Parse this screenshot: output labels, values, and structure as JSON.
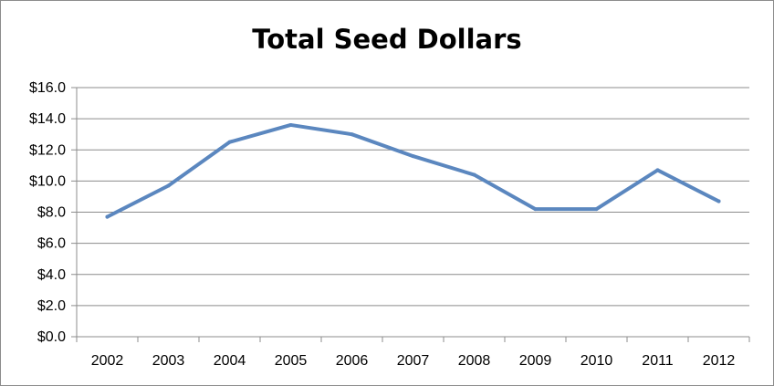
{
  "chart_data": {
    "type": "line",
    "title": "Total Seed Dollars",
    "xlabel": "",
    "ylabel": "",
    "categories": [
      "2002",
      "2003",
      "2004",
      "2005",
      "2006",
      "2007",
      "2008",
      "2009",
      "2010",
      "2011",
      "2012"
    ],
    "series": [
      {
        "values": [
          7.7,
          9.7,
          12.5,
          13.6,
          13.0,
          11.6,
          10.4,
          8.2,
          8.2,
          10.7,
          8.7
        ],
        "color": "#5b87bf"
      }
    ],
    "ylim": [
      0,
      16
    ],
    "yticks": [
      0,
      2,
      4,
      6,
      8,
      10,
      12,
      14,
      16
    ],
    "ytick_labels": [
      "$0.0",
      "$2.0",
      "$4.0",
      "$6.0",
      "$8.0",
      "$10.0",
      "$12.0",
      "$14.0",
      "$16.0"
    ],
    "grid": true,
    "legend": "none",
    "colors": {
      "gridline": "#8c8c8c",
      "axis": "#8c8c8c"
    }
  }
}
